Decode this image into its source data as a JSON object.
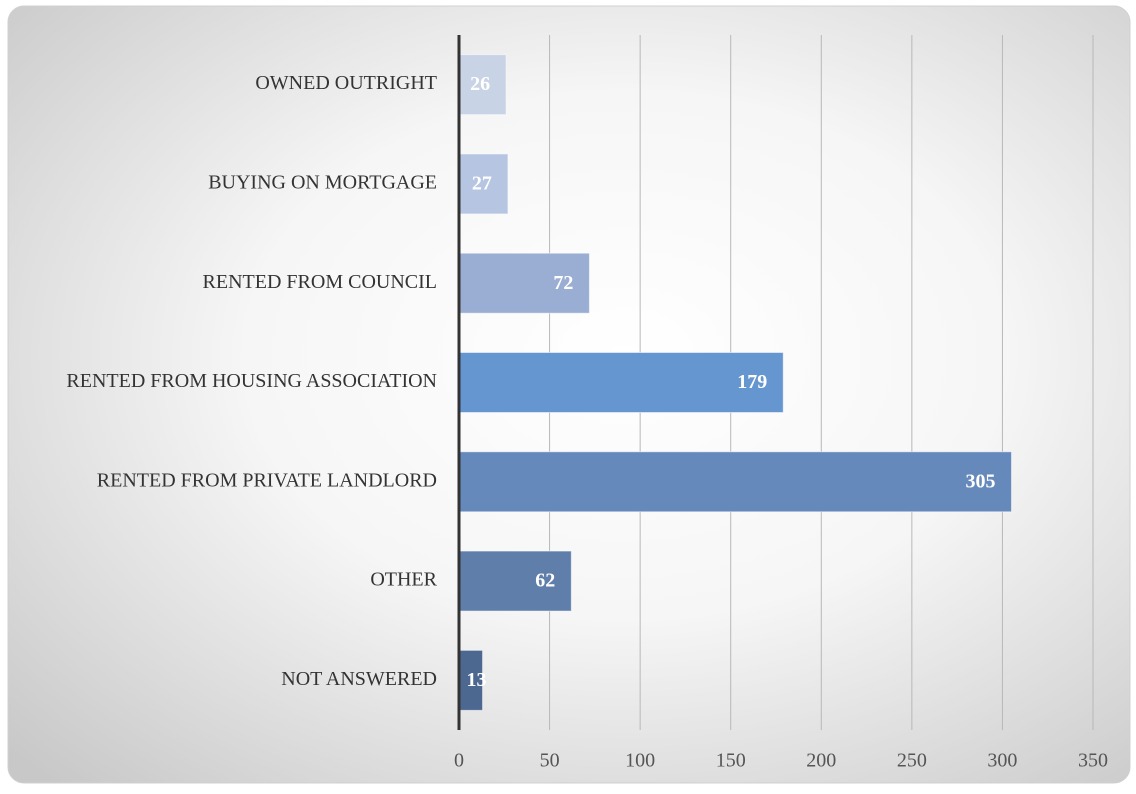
{
  "chart_data": {
    "type": "bar",
    "orientation": "horizontal",
    "categories": [
      "OWNED OUTRIGHT",
      "BUYING ON MORTGAGE",
      "RENTED FROM COUNCIL",
      "RENTED FROM HOUSING ASSOCIATION",
      "RENTED FROM PRIVATE LANDLORD",
      "OTHER",
      "NOT ANSWERED"
    ],
    "values": [
      26,
      27,
      72,
      179,
      305,
      62,
      13
    ],
    "colors": [
      "#c9d3e6",
      "#b6c5e1",
      "#9aaed3",
      "#6696cf",
      "#6689bb",
      "#5f7ea9",
      "#4d6890"
    ],
    "xlim": [
      0,
      350
    ],
    "xticks": [
      0,
      50,
      100,
      150,
      200,
      250,
      300,
      350
    ],
    "grid": true
  }
}
